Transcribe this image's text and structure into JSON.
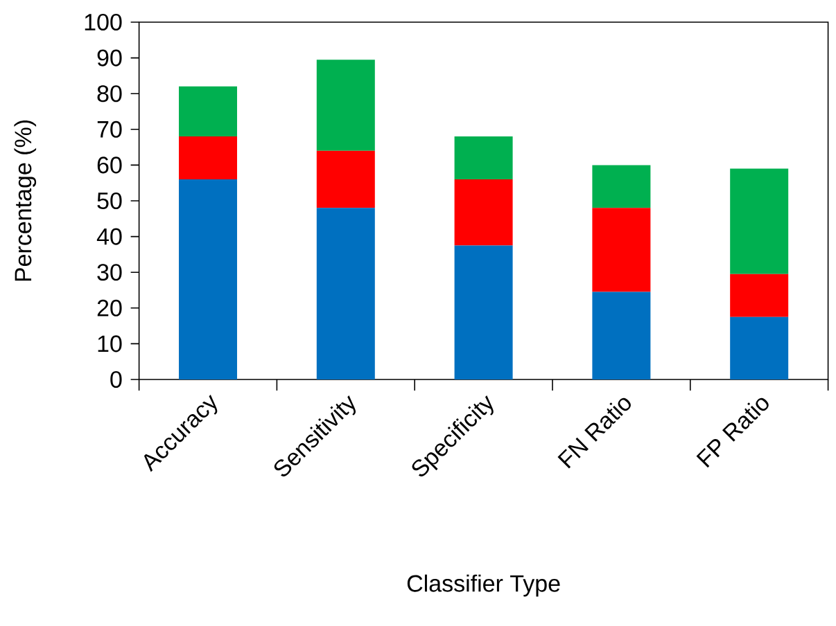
{
  "chart_data": {
    "type": "bar",
    "stacked": true,
    "xlabel": "Classifier Type",
    "ylabel": "Percentage (%)",
    "categories": [
      "Accuracy",
      "Sensitivity",
      "Specificity",
      "FN Ratio",
      "FP Ratio"
    ],
    "series": [
      {
        "color": "#0070c0",
        "values": [
          56,
          48,
          37.5,
          24.5,
          17.5
        ]
      },
      {
        "color": "#ff0000",
        "values": [
          12,
          16,
          18.5,
          23.5,
          12
        ]
      },
      {
        "color": "#00b050",
        "values": [
          14,
          25.5,
          12,
          12,
          29.5
        ]
      }
    ],
    "ylim": [
      0,
      100
    ],
    "yticks": [
      0,
      10,
      20,
      30,
      40,
      50,
      60,
      70,
      80,
      90,
      100
    ],
    "grid": false
  }
}
